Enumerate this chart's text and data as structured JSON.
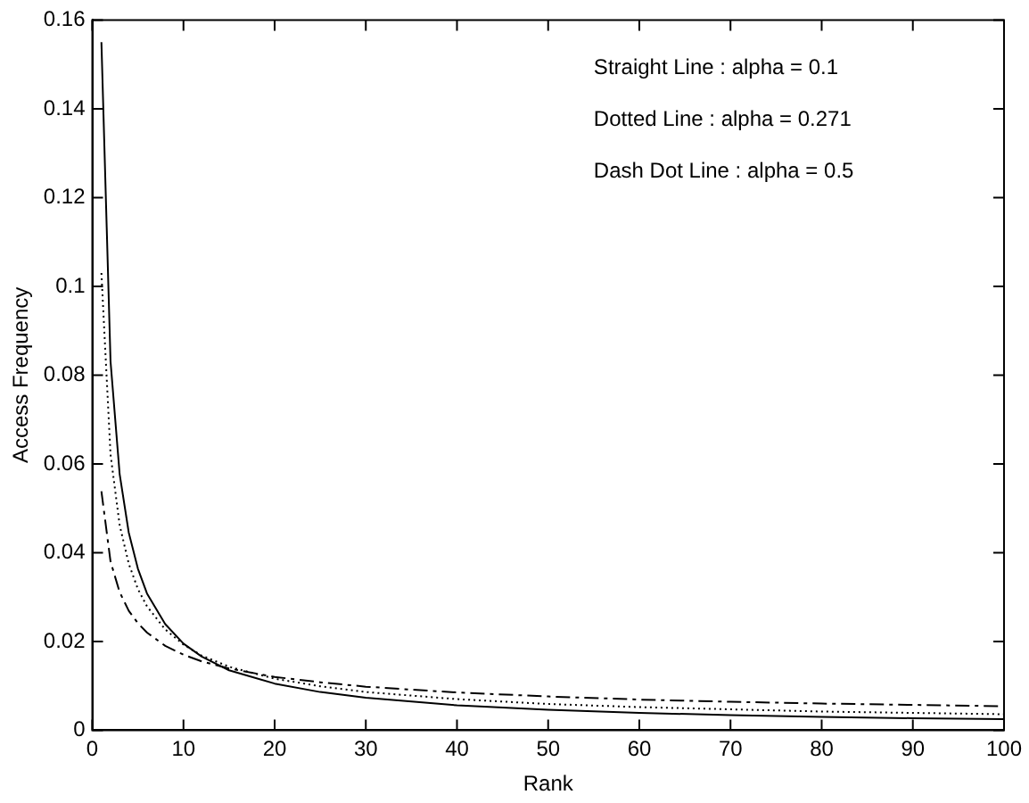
{
  "chart_data": {
    "type": "line",
    "xlabel": "Rank",
    "ylabel": "Access Frequency",
    "annotations": [
      "Straight Line : alpha = 0.1",
      "Dotted Line : alpha = 0.271",
      "Dash Dot Line : alpha = 0.5"
    ],
    "x": [
      1,
      2,
      3,
      4,
      5,
      6,
      8,
      10,
      12,
      15,
      20,
      25,
      30,
      40,
      50,
      60,
      70,
      80,
      90,
      100
    ],
    "series": [
      {
        "color": "#000000",
        "line_style": "solid",
        "values": [
          0.155,
          0.0831,
          0.0577,
          0.0445,
          0.0364,
          0.0308,
          0.0239,
          0.0195,
          0.0166,
          0.0135,
          0.0105,
          0.0086,
          0.0073,
          0.0056,
          0.0046,
          0.0039,
          0.0034,
          0.003,
          0.0027,
          0.0025
        ]
      },
      {
        "color": "#000000",
        "line_style": "dotted",
        "values": [
          0.103,
          0.0621,
          0.0462,
          0.0375,
          0.0318,
          0.0279,
          0.0227,
          0.0193,
          0.0168,
          0.0143,
          0.0116,
          0.0099,
          0.0086,
          0.007,
          0.0059,
          0.0052,
          0.0047,
          0.0042,
          0.0039,
          0.0036
        ]
      },
      {
        "color": "#000000",
        "line_style": "dashed",
        "values": [
          0.0538,
          0.038,
          0.0311,
          0.0269,
          0.0241,
          0.022,
          0.019,
          0.017,
          0.0155,
          0.0139,
          0.012,
          0.0108,
          0.0098,
          0.0085,
          0.0076,
          0.0069,
          0.0064,
          0.006,
          0.0057,
          0.0054
        ]
      }
    ],
    "xlim": [
      0,
      100
    ],
    "xticks": [
      0,
      10,
      20,
      30,
      40,
      50,
      60,
      70,
      80,
      90,
      100
    ],
    "ylim": [
      0,
      0.16
    ],
    "yticks": [
      0,
      0.02,
      0.04,
      0.06,
      0.08,
      0.1,
      0.12,
      0.14,
      0.16
    ],
    "grid": false,
    "legend": false,
    "marker": "none"
  }
}
